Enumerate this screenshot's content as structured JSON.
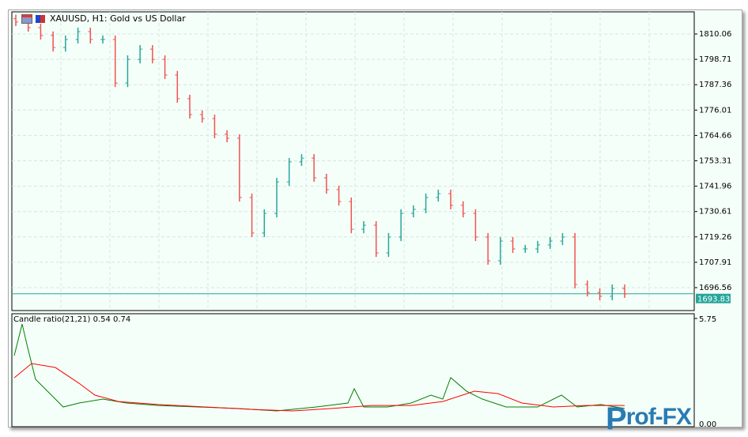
{
  "window": {
    "title": "XAUUSD, H1:  Gold vs US Dollar",
    "icons": [
      "chart-window-icon",
      "save-icon"
    ]
  },
  "colors": {
    "bull": "#26a69a",
    "bear": "#ef5350",
    "background": "#f5fff9",
    "grid": "#d8e4de",
    "ratio_line": "#008000",
    "ma_line": "#ff0000",
    "current_price_bg": "#26a69a"
  },
  "indicator": {
    "label": "Candle ratio(21,21) 0.54 0.74"
  },
  "logo": {
    "text": "Prof-FX"
  },
  "chart_data": [
    {
      "type": "candlestick",
      "symbol": "XAUUSD",
      "timeframe": "H1",
      "yticks": [
        "1810.06",
        "1798.71",
        "1787.36",
        "1776.01",
        "1764.66",
        "1753.31",
        "1741.96",
        "1730.61",
        "1719.26",
        "1707.91",
        "1696.56"
      ],
      "ylim": [
        1690.6,
        1819.7
      ],
      "current_price": "1693.83",
      "closes": [
        1815.4,
        1812.9,
        1809.4,
        1804.0,
        1807.6,
        1811.1,
        1807.6,
        1807.6,
        1788.1,
        1798.7,
        1803.3,
        1798.7,
        1791.7,
        1781.1,
        1774.0,
        1772.2,
        1765.2,
        1763.4,
        1736.9,
        1721.0,
        1729.8,
        1743.9,
        1752.8,
        1754.5,
        1745.7,
        1740.4,
        1735.1,
        1722.7,
        1724.5,
        1712.1,
        1719.2,
        1729.8,
        1731.6,
        1736.9,
        1738.6,
        1733.4,
        1729.8,
        1719.2,
        1708.6,
        1717.4,
        1713.9,
        1713.9,
        1715.7,
        1717.4,
        1719.2,
        1698.0,
        1694.4,
        1692.7,
        1696.2,
        1693.8
      ],
      "grid": true
    },
    {
      "type": "line",
      "yticks": [
        "5.75"
      ],
      "bottom_tick": "0.00",
      "ylim": [
        0,
        5.75
      ],
      "series": [
        {
          "values": [
            3.78,
            5.46,
            4.2,
            2.52,
            2.1,
            1.47,
            1.05,
            1.26,
            1.47,
            1.26,
            1.13,
            1.05,
            0.97,
            0.84,
            1.05,
            1.26,
            2.02,
            1.05,
            1.05,
            1.26,
            1.68,
            1.47,
            2.61,
            1.89,
            1.47,
            1.05,
            1.05,
            1.68,
            1.05,
            1.18,
            0.97
          ],
          "x": [
            0,
            10,
            17,
            27,
            37,
            52,
            62,
            82,
            112,
            142,
            182,
            232,
            282,
            332,
            382,
            422,
            430,
            442,
            472,
            502,
            527,
            542,
            552,
            572,
            592,
            622,
            662,
            692,
            712,
            742,
            772
          ]
        },
        {
          "values": [
            2.6,
            3.36,
            3.15,
            2.31,
            1.68,
            1.34,
            1.18,
            1.05,
            0.92,
            0.84,
            0.97,
            1.13,
            1.13,
            1.34,
            1.89,
            1.76,
            1.26,
            1.05,
            1.13,
            1.13
          ],
          "x": [
            0,
            22,
            52,
            82,
            102,
            132,
            182,
            242,
            302,
            352,
            402,
            452,
            502,
            542,
            582,
            612,
            642,
            682,
            722,
            772
          ]
        }
      ]
    }
  ]
}
